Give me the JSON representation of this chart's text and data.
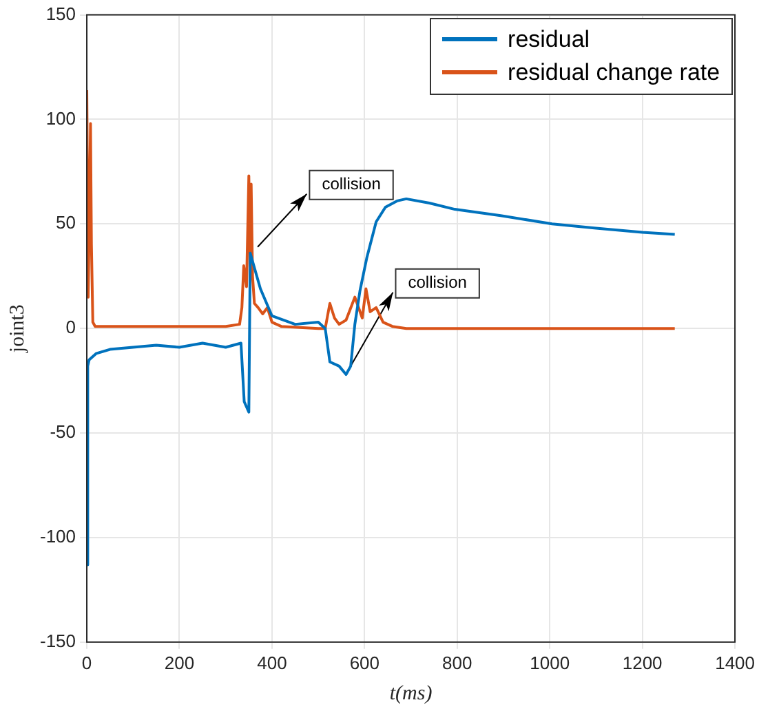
{
  "chart_data": {
    "type": "line",
    "xlabel": "t(ms)",
    "ylabel": "joint3",
    "xlim": [
      0,
      1400
    ],
    "ylim": [
      -150,
      150
    ],
    "xticks": [
      0,
      200,
      400,
      600,
      800,
      1000,
      1200,
      1400
    ],
    "yticks": [
      -150,
      -100,
      -50,
      0,
      50,
      100,
      150
    ],
    "grid": true,
    "legend": "top right",
    "marker": "none",
    "line_style": "solid",
    "series": [
      {
        "name": "residual",
        "color": "#0072bd",
        "x": [
          0,
          2,
          5,
          20,
          50,
          100,
          150,
          200,
          250,
          300,
          333,
          340,
          350,
          353,
          375,
          400,
          450,
          500,
          515,
          525,
          545,
          560,
          570,
          579,
          590,
          605,
          625,
          645,
          670,
          690,
          740,
          795,
          894,
          1005,
          1100,
          1200,
          1270
        ],
        "values": [
          -113,
          -18,
          -15,
          -12,
          -10,
          -9,
          -8,
          -9,
          -7,
          -9,
          -7,
          -35,
          -40,
          36,
          19,
          6,
          2,
          3,
          0,
          -16,
          -18,
          -22,
          -18,
          2,
          18,
          34,
          51,
          58,
          61,
          62,
          60,
          57,
          54,
          50,
          48,
          46,
          45
        ]
      },
      {
        "name": "residual change rate",
        "color": "#d95319",
        "x": [
          0,
          3,
          8,
          10,
          13,
          18,
          50,
          100,
          200,
          300,
          330,
          335,
          339,
          345,
          350,
          353,
          355,
          358,
          362,
          370,
          380,
          390,
          400,
          420,
          500,
          515,
          525,
          535,
          545,
          560,
          579,
          595,
          603,
          612,
          625,
          640,
          660,
          690,
          800,
          1000,
          1270
        ],
        "values": [
          114,
          15,
          98,
          40,
          3,
          1,
          1,
          1,
          1,
          1,
          2,
          10,
          30,
          20,
          73,
          30,
          69,
          25,
          12,
          10,
          7,
          10,
          3,
          1,
          0,
          0,
          12,
          5,
          2,
          4,
          15,
          5,
          19,
          8,
          10,
          3,
          1,
          0,
          0,
          0,
          0
        ]
      }
    ],
    "annotations": [
      {
        "text": "collision",
        "x": 369,
        "y": 39
      },
      {
        "text": "collision",
        "x": 570,
        "y": -18
      }
    ]
  }
}
